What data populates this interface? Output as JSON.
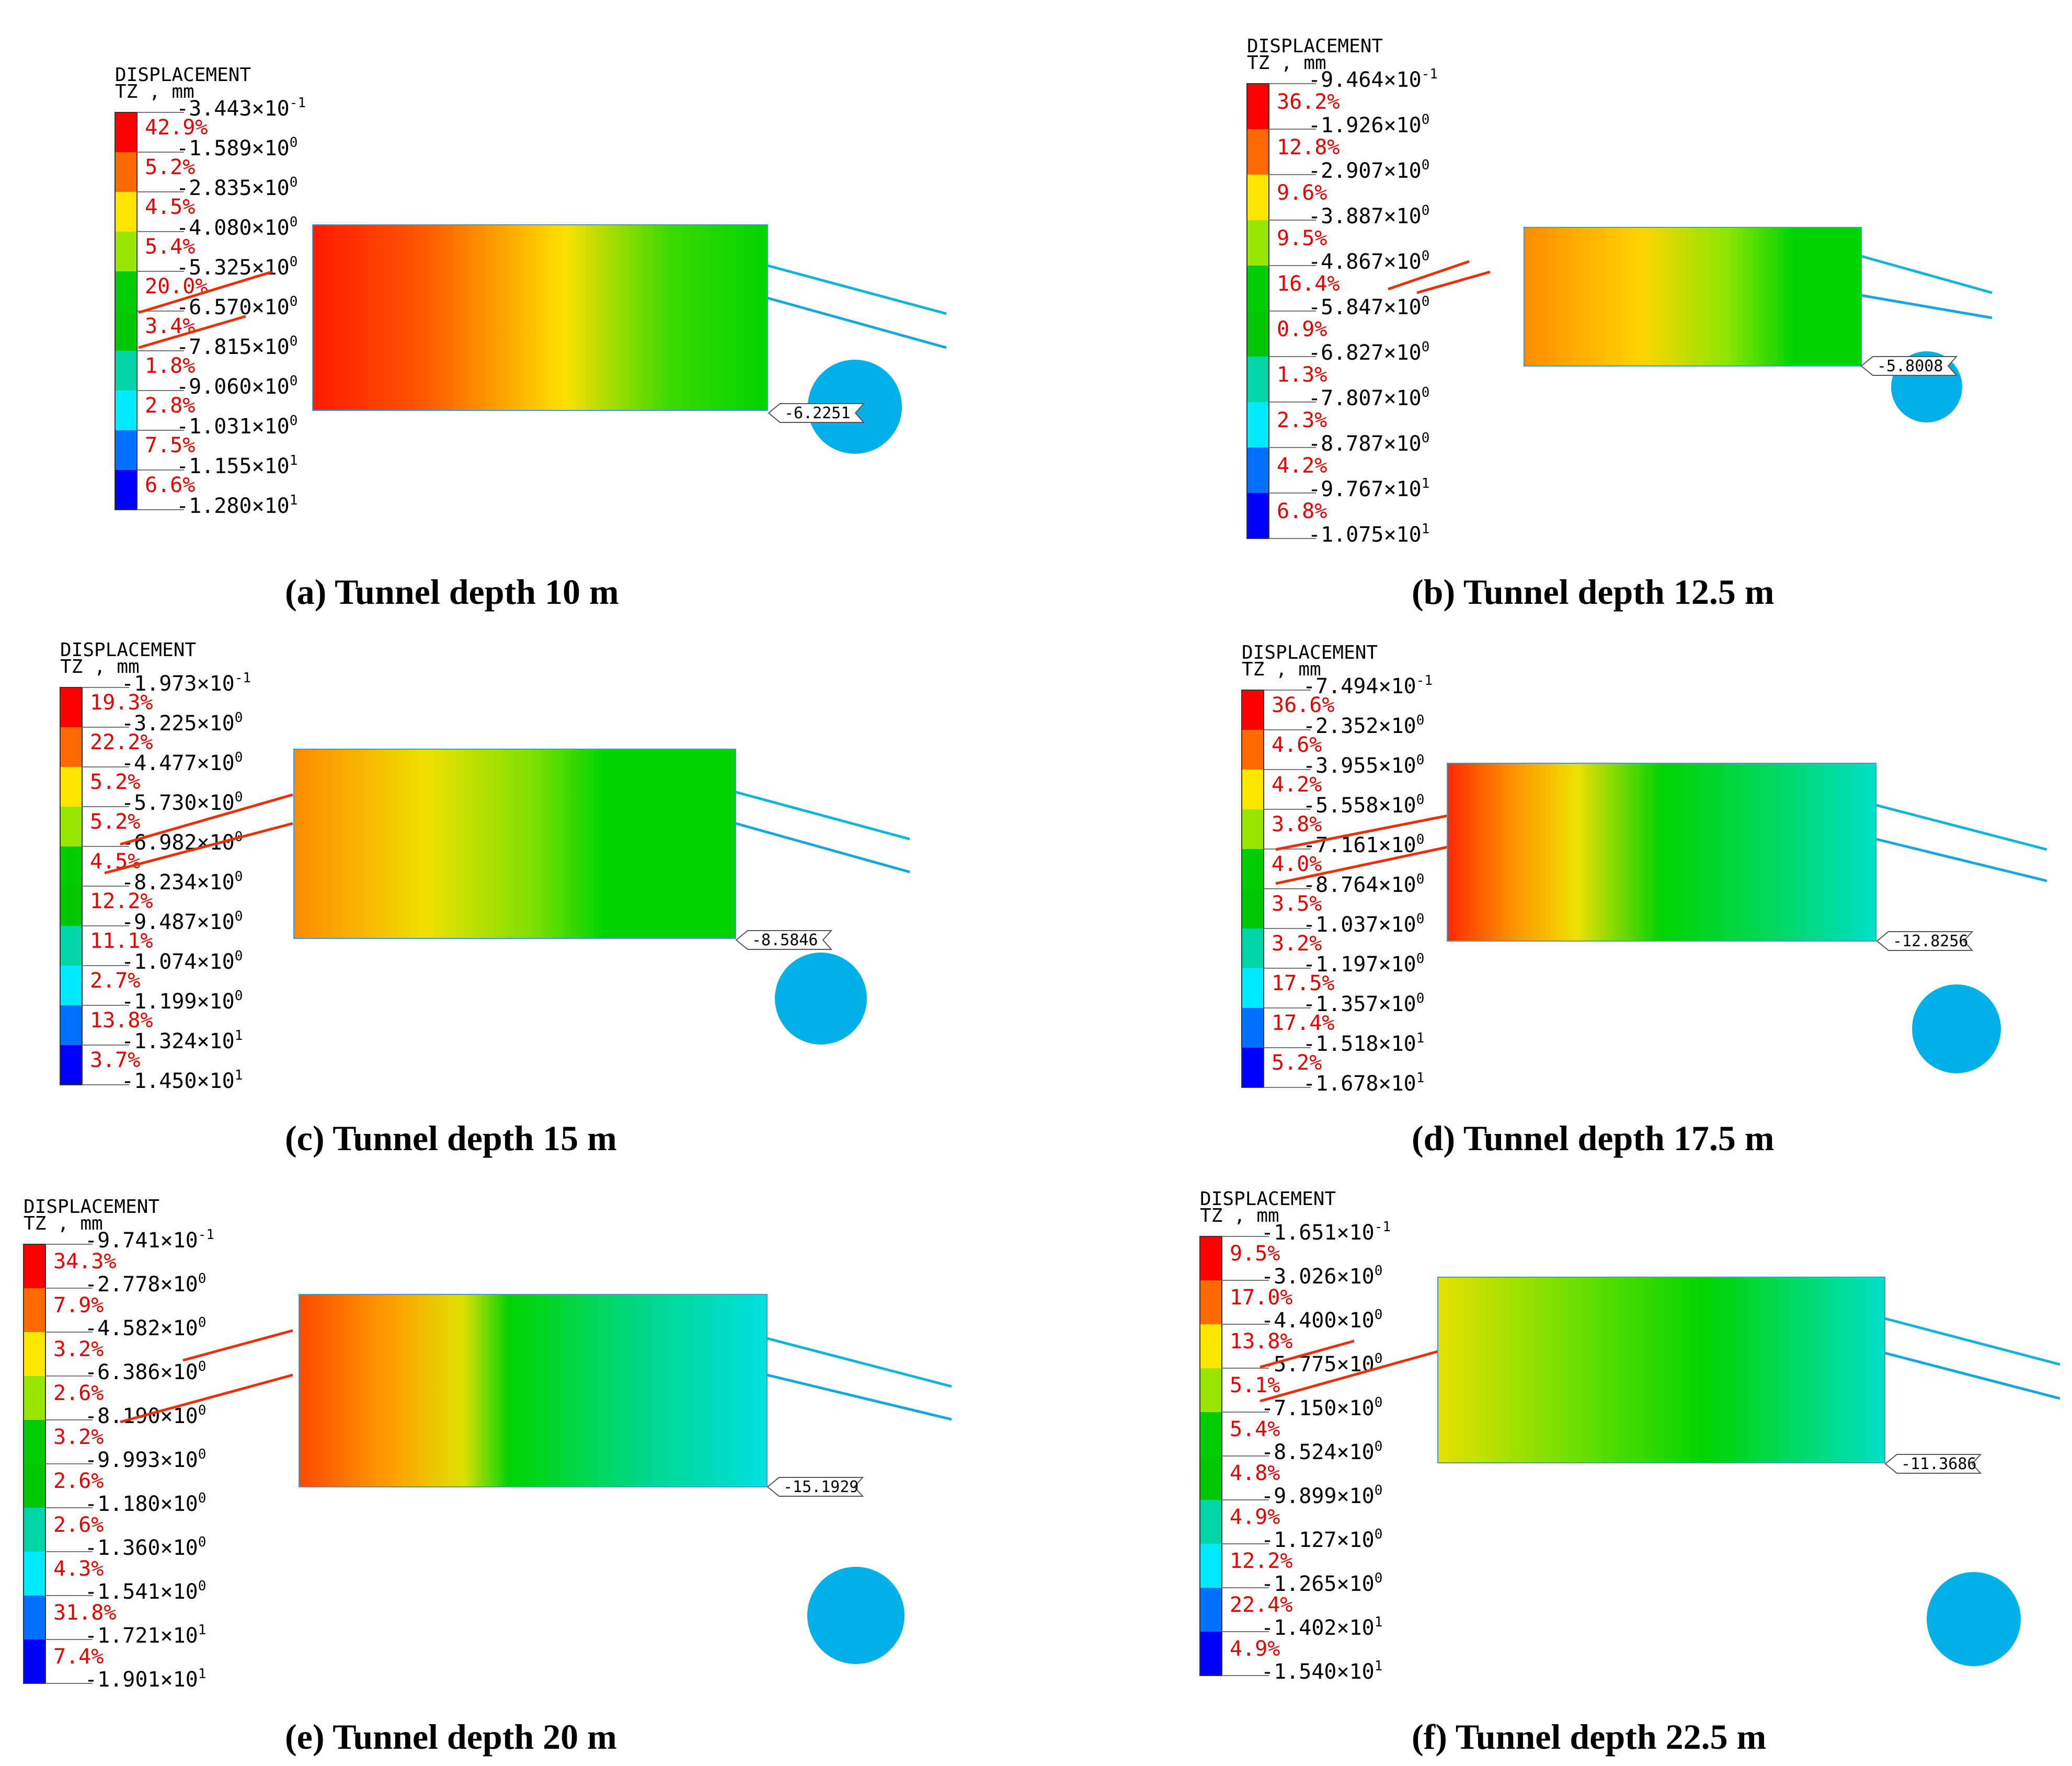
{
  "legend_title_line1": "DISPLACEMENT",
  "legend_title_line2": "TZ , mm",
  "color_scale": [
    "#ff0000",
    "#ff6a00",
    "#ffe600",
    "#99e600",
    "#00cc00",
    "#00c800",
    "#00d6a8",
    "#00eaff",
    "#0070ff",
    "#0000ff"
  ],
  "circle_color": "#00b0e6",
  "panels": [
    {
      "id": "a",
      "caption_label": "(a)",
      "caption_text": "Tunnel depth 10 m",
      "callout": "-6.2251",
      "levels": [
        {
          "mant": "-3.443",
          "exp": "-1"
        },
        {
          "mant": "-1.589",
          "exp": "0"
        },
        {
          "mant": "-2.835",
          "exp": "0"
        },
        {
          "mant": "-4.080",
          "exp": "0"
        },
        {
          "mant": "-5.325",
          "exp": "0"
        },
        {
          "mant": "-6.570",
          "exp": "0"
        },
        {
          "mant": "-7.815",
          "exp": "0"
        },
        {
          "mant": "-9.060",
          "exp": "0"
        },
        {
          "mant": "-1.031",
          "exp": "0"
        },
        {
          "mant": "-1.155",
          "exp": "1"
        },
        {
          "mant": "-1.280",
          "exp": "1"
        }
      ],
      "percentages": [
        "42.9%",
        "5.2%",
        "4.5%",
        "5.4%",
        "20.0%",
        "3.4%",
        "1.8%",
        "2.8%",
        "7.5%",
        "6.6%"
      ]
    },
    {
      "id": "b",
      "caption_label": "(b)",
      "caption_text": "Tunnel depth 12.5 m",
      "callout": "-5.8008",
      "levels": [
        {
          "mant": "-9.464",
          "exp": "-1"
        },
        {
          "mant": "-1.926",
          "exp": "0"
        },
        {
          "mant": "-2.907",
          "exp": "0"
        },
        {
          "mant": "-3.887",
          "exp": "0"
        },
        {
          "mant": "-4.867",
          "exp": "0"
        },
        {
          "mant": "-5.847",
          "exp": "0"
        },
        {
          "mant": "-6.827",
          "exp": "0"
        },
        {
          "mant": "-7.807",
          "exp": "0"
        },
        {
          "mant": "-8.787",
          "exp": "0"
        },
        {
          "mant": "-9.767",
          "exp": "1"
        },
        {
          "mant": "-1.075",
          "exp": "1"
        }
      ],
      "percentages": [
        "36.2%",
        "12.8%",
        "9.6%",
        "9.5%",
        "16.4%",
        "0.9%",
        "1.3%",
        "2.3%",
        "4.2%",
        "6.8%"
      ]
    },
    {
      "id": "c",
      "caption_label": "(c)",
      "caption_text": "Tunnel depth 15 m",
      "callout": "-8.5846",
      "levels": [
        {
          "mant": "-1.973",
          "exp": "-1"
        },
        {
          "mant": "-3.225",
          "exp": "0"
        },
        {
          "mant": "-4.477",
          "exp": "0"
        },
        {
          "mant": "-5.730",
          "exp": "0"
        },
        {
          "mant": "-6.982",
          "exp": "0"
        },
        {
          "mant": "-8.234",
          "exp": "0"
        },
        {
          "mant": "-9.487",
          "exp": "0"
        },
        {
          "mant": "-1.074",
          "exp": "0"
        },
        {
          "mant": "-1.199",
          "exp": "0"
        },
        {
          "mant": "-1.324",
          "exp": "1"
        },
        {
          "mant": "-1.450",
          "exp": "1"
        }
      ],
      "percentages": [
        "19.3%",
        "22.2%",
        "5.2%",
        "5.2%",
        "4.5%",
        "12.2%",
        "11.1%",
        "2.7%",
        "13.8%",
        "3.7%"
      ]
    },
    {
      "id": "d",
      "caption_label": "(d)",
      "caption_text": "Tunnel depth 17.5 m",
      "callout": "-12.8256",
      "levels": [
        {
          "mant": "-7.494",
          "exp": "-1"
        },
        {
          "mant": "-2.352",
          "exp": "0"
        },
        {
          "mant": "-3.955",
          "exp": "0"
        },
        {
          "mant": "-5.558",
          "exp": "0"
        },
        {
          "mant": "-7.161",
          "exp": "0"
        },
        {
          "mant": "-8.764",
          "exp": "0"
        },
        {
          "mant": "-1.037",
          "exp": "0"
        },
        {
          "mant": "-1.197",
          "exp": "0"
        },
        {
          "mant": "-1.357",
          "exp": "0"
        },
        {
          "mant": "-1.518",
          "exp": "1"
        },
        {
          "mant": "-1.678",
          "exp": "1"
        }
      ],
      "percentages": [
        "36.6%",
        "4.6%",
        "4.2%",
        "3.8%",
        "4.0%",
        "3.5%",
        "3.2%",
        "17.5%",
        "17.4%",
        "5.2%"
      ]
    },
    {
      "id": "e",
      "caption_label": "(e)",
      "caption_text": "Tunnel depth 20 m",
      "callout": "-15.1929",
      "levels": [
        {
          "mant": "-9.741",
          "exp": "-1"
        },
        {
          "mant": "-2.778",
          "exp": "0"
        },
        {
          "mant": "-4.582",
          "exp": "0"
        },
        {
          "mant": "-6.386",
          "exp": "0"
        },
        {
          "mant": "-8.190",
          "exp": "0"
        },
        {
          "mant": "-9.993",
          "exp": "0"
        },
        {
          "mant": "-1.180",
          "exp": "0"
        },
        {
          "mant": "-1.360",
          "exp": "0"
        },
        {
          "mant": "-1.541",
          "exp": "0"
        },
        {
          "mant": "-1.721",
          "exp": "1"
        },
        {
          "mant": "-1.901",
          "exp": "1"
        }
      ],
      "percentages": [
        "34.3%",
        "7.9%",
        "3.2%",
        "2.6%",
        "3.2%",
        "2.6%",
        "2.6%",
        "4.3%",
        "31.8%",
        "7.4%"
      ]
    },
    {
      "id": "f",
      "caption_label": "(f)",
      "caption_text": "Tunnel depth 22.5 m",
      "callout": "-11.3686",
      "levels": [
        {
          "mant": "-1.651",
          "exp": "-1"
        },
        {
          "mant": "-3.026",
          "exp": "0"
        },
        {
          "mant": "-4.400",
          "exp": "0"
        },
        {
          "mant": "-5.775",
          "exp": "0"
        },
        {
          "mant": "-7.150",
          "exp": "0"
        },
        {
          "mant": "-8.524",
          "exp": "0"
        },
        {
          "mant": "-9.899",
          "exp": "0"
        },
        {
          "mant": "-1.127",
          "exp": "0"
        },
        {
          "mant": "-1.265",
          "exp": "0"
        },
        {
          "mant": "-1.402",
          "exp": "1"
        },
        {
          "mant": "-1.540",
          "exp": "1"
        }
      ],
      "percentages": [
        "9.5%",
        "17.0%",
        "13.8%",
        "5.1%",
        "5.4%",
        "4.8%",
        "4.9%",
        "12.2%",
        "22.4%",
        "4.9%"
      ]
    }
  ]
}
